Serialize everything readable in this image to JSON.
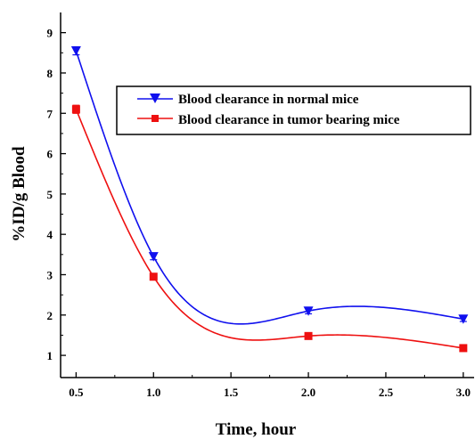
{
  "chart_data": {
    "type": "line",
    "title": "",
    "xlabel": "Time, hour",
    "ylabel": "%ID/g Blood",
    "xlim": [
      0.4,
      3.07
    ],
    "ylim": [
      0.45,
      9.5
    ],
    "xticks": [
      0.5,
      1.0,
      1.5,
      2.0,
      2.5,
      3.0
    ],
    "xtick_labels": [
      "0.5",
      "1.0",
      "1.5",
      "2.0",
      "2.5",
      "3.0"
    ],
    "yticks": [
      1,
      2,
      3,
      4,
      5,
      6,
      7,
      8,
      9
    ],
    "ytick_labels": [
      "1",
      "2",
      "3",
      "4",
      "5",
      "6",
      "7",
      "8",
      "9"
    ],
    "grid": false,
    "legend_position": "upper-right",
    "series": [
      {
        "name": "Blood clearance in normal mice",
        "color": "#1010ee",
        "marker": "triangle-down",
        "x": [
          0.5,
          1.0,
          2.0,
          3.0
        ],
        "y": [
          8.55,
          3.45,
          2.1,
          1.9
        ],
        "error": [
          0.1,
          0.08,
          0.07,
          0.06
        ]
      },
      {
        "name": "Blood clearance in tumor bearing mice",
        "color": "#ee1010",
        "marker": "square",
        "x": [
          0.5,
          1.0,
          2.0,
          3.0
        ],
        "y": [
          7.1,
          2.95,
          1.48,
          1.18
        ],
        "error": [
          0.1,
          0.06,
          0.05,
          0.05
        ]
      }
    ]
  }
}
